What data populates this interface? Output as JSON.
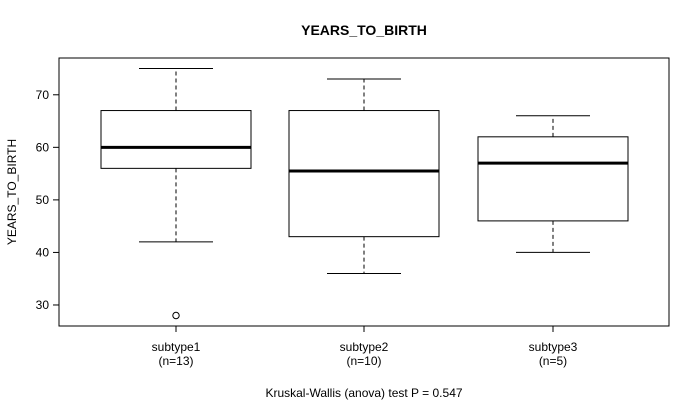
{
  "chart_data": {
    "type": "boxplot",
    "title": "YEARS_TO_BIRTH",
    "ylabel": "YEARS_TO_BIRTH",
    "xlabel": "",
    "ylim": [
      26,
      77
    ],
    "yticks": [
      30,
      40,
      50,
      60,
      70
    ],
    "grid": false,
    "boxes": [
      {
        "label": "subtype1",
        "count_label": "(n=13)",
        "whisker_low": 42,
        "q1": 56,
        "median": 60,
        "q3": 67,
        "whisker_high": 75,
        "outliers": [
          28
        ]
      },
      {
        "label": "subtype2",
        "count_label": "(n=10)",
        "whisker_low": 36,
        "q1": 43,
        "median": 55.5,
        "q3": 67,
        "whisker_high": 73,
        "outliers": []
      },
      {
        "label": "subtype3",
        "count_label": "(n=5)",
        "whisker_low": 40,
        "q1": 46,
        "median": 57,
        "q3": 62,
        "whisker_high": 66,
        "outliers": []
      }
    ],
    "annotation": "Kruskal-Wallis (anova) test P = 0.547"
  }
}
